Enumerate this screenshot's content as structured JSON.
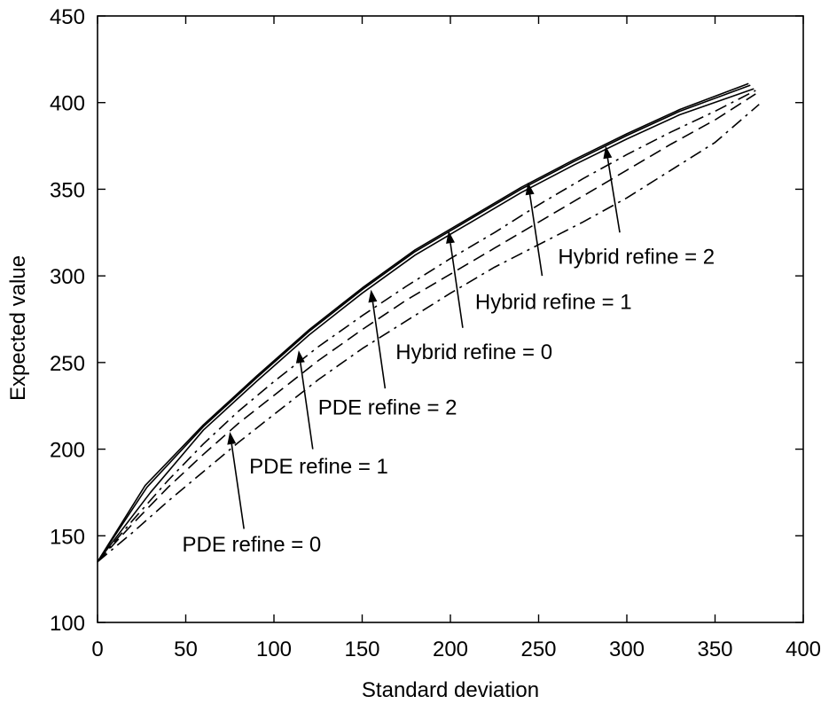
{
  "chart_data": {
    "type": "line",
    "xlabel": "Standard deviation",
    "ylabel": "Expected value",
    "xlim": [
      0,
      400
    ],
    "ylim": [
      100,
      450
    ],
    "xticks": [
      0,
      50,
      100,
      150,
      200,
      250,
      300,
      350,
      400
    ],
    "yticks": [
      100,
      150,
      200,
      250,
      300,
      350,
      400,
      450
    ],
    "grid": false,
    "box": true,
    "series": [
      {
        "id": "pde-0",
        "style": "dashdot",
        "points": [
          [
            0,
            135
          ],
          [
            20,
            152
          ],
          [
            40,
            170
          ],
          [
            60,
            187
          ],
          [
            80,
            204
          ],
          [
            100,
            220
          ],
          [
            125,
            240
          ],
          [
            150,
            258
          ],
          [
            175,
            274
          ],
          [
            200,
            290
          ],
          [
            225,
            305
          ],
          [
            250,
            318
          ],
          [
            275,
            331
          ],
          [
            300,
            345
          ],
          [
            325,
            361
          ],
          [
            350,
            377
          ],
          [
            375,
            399
          ]
        ]
      },
      {
        "id": "pde-1",
        "style": "dashed",
        "points": [
          [
            0,
            135
          ],
          [
            20,
            157
          ],
          [
            40,
            178
          ],
          [
            60,
            197
          ],
          [
            80,
            215
          ],
          [
            100,
            231
          ],
          [
            125,
            251
          ],
          [
            150,
            269
          ],
          [
            175,
            286
          ],
          [
            200,
            301
          ],
          [
            225,
            316
          ],
          [
            250,
            331
          ],
          [
            275,
            346
          ],
          [
            300,
            361
          ],
          [
            325,
            376
          ],
          [
            350,
            390
          ],
          [
            373,
            405
          ]
        ]
      },
      {
        "id": "pde-2",
        "style": "dashdot",
        "points": [
          [
            0,
            135
          ],
          [
            20,
            159
          ],
          [
            40,
            182
          ],
          [
            60,
            203
          ],
          [
            80,
            222
          ],
          [
            100,
            239
          ],
          [
            125,
            259
          ],
          [
            150,
            277
          ],
          [
            175,
            294
          ],
          [
            200,
            310
          ],
          [
            225,
            325
          ],
          [
            250,
            341
          ],
          [
            275,
            356
          ],
          [
            300,
            370
          ],
          [
            325,
            383
          ],
          [
            350,
            395
          ],
          [
            373,
            407
          ]
        ]
      },
      {
        "id": "hybrid-0",
        "style": "solid",
        "points": [
          [
            0,
            135
          ],
          [
            30,
            175
          ],
          [
            60,
            211
          ],
          [
            90,
            239
          ],
          [
            120,
            266
          ],
          [
            150,
            290
          ],
          [
            180,
            312
          ],
          [
            210,
            330
          ],
          [
            240,
            348
          ],
          [
            270,
            364
          ],
          [
            300,
            379
          ],
          [
            330,
            393
          ],
          [
            372,
            408
          ]
        ]
      },
      {
        "id": "hybrid-1",
        "style": "solid",
        "points": [
          [
            0,
            135
          ],
          [
            28,
            178
          ],
          [
            60,
            213
          ],
          [
            90,
            241
          ],
          [
            120,
            268
          ],
          [
            150,
            292
          ],
          [
            180,
            314
          ],
          [
            210,
            332
          ],
          [
            240,
            350
          ],
          [
            270,
            366
          ],
          [
            300,
            381
          ],
          [
            330,
            395
          ],
          [
            370,
            410
          ]
        ]
      },
      {
        "id": "hybrid-2",
        "style": "solid",
        "points": [
          [
            0,
            135
          ],
          [
            27,
            179
          ],
          [
            60,
            214
          ],
          [
            90,
            242
          ],
          [
            120,
            269
          ],
          [
            150,
            293
          ],
          [
            180,
            315
          ],
          [
            210,
            333
          ],
          [
            240,
            351
          ],
          [
            270,
            367
          ],
          [
            300,
            382
          ],
          [
            330,
            396
          ],
          [
            369,
            411
          ]
        ]
      }
    ],
    "annotations": [
      {
        "id": "pde-0",
        "label": "PDE refine = 0",
        "tip": [
          75,
          210
        ],
        "tail": [
          83,
          154
        ],
        "text_at": [
          48,
          145
        ]
      },
      {
        "id": "pde-1",
        "label": "PDE refine = 1",
        "tip": [
          114,
          257
        ],
        "tail": [
          122,
          200
        ],
        "text_at": [
          86,
          190
        ]
      },
      {
        "id": "pde-2",
        "label": "PDE refine = 2",
        "tip": [
          155,
          292
        ],
        "tail": [
          163,
          235
        ],
        "text_at": [
          125,
          224
        ]
      },
      {
        "id": "hybrid-0",
        "label": "Hybrid refine = 0",
        "tip": [
          199,
          326
        ],
        "tail": [
          207,
          270
        ],
        "text_at": [
          169,
          256
        ]
      },
      {
        "id": "hybrid-1",
        "label": "Hybrid refine = 1",
        "tip": [
          244,
          354
        ],
        "tail": [
          252,
          300
        ],
        "text_at": [
          214,
          285
        ]
      },
      {
        "id": "hybrid-2",
        "label": "Hybrid refine = 2",
        "tip": [
          288,
          375
        ],
        "tail": [
          296,
          325
        ],
        "text_at": [
          261,
          311
        ]
      }
    ]
  }
}
